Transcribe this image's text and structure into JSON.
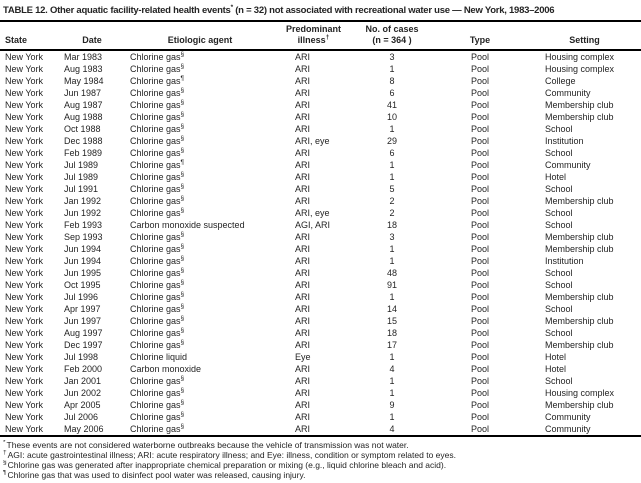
{
  "title": {
    "part1": "TABLE 12. Other aquatic facility-related health events",
    "sup": "*",
    "part2": " (n = 32) not associated with recreational water use — New York, 1983–2006"
  },
  "table": {
    "columns": [
      {
        "label": "State"
      },
      {
        "label": "Date"
      },
      {
        "label": "Etiologic agent"
      },
      {
        "line1": "Predominant",
        "line2": "illness",
        "sup": "†"
      },
      {
        "line1": "No. of cases",
        "line2": "(n = 364 )"
      },
      {
        "label": "Type"
      },
      {
        "label": "Setting"
      }
    ],
    "rows": [
      {
        "state": "New York",
        "date": "Mar 1983",
        "agent": "Chlorine gas",
        "agent_sup": "§",
        "illness": "ARI",
        "cases": "3",
        "type": "Pool",
        "setting": "Housing complex"
      },
      {
        "state": "New York",
        "date": "Aug 1983",
        "agent": "Chlorine gas",
        "agent_sup": "§",
        "illness": "ARI",
        "cases": "1",
        "type": "Pool",
        "setting": "Housing complex"
      },
      {
        "state": "New York",
        "date": "May 1984",
        "agent": "Chlorine gas",
        "agent_sup": "¶",
        "illness": "ARI",
        "cases": "8",
        "type": "Pool",
        "setting": "College"
      },
      {
        "state": "New York",
        "date": "Jun 1987",
        "agent": "Chlorine gas",
        "agent_sup": "§",
        "illness": "ARI",
        "cases": "6",
        "type": "Pool",
        "setting": "Community"
      },
      {
        "state": "New York",
        "date": "Aug 1987",
        "agent": "Chlorine gas",
        "agent_sup": "§",
        "illness": "ARI",
        "cases": "41",
        "type": "Pool",
        "setting": "Membership club"
      },
      {
        "state": "New York",
        "date": "Aug 1988",
        "agent": "Chlorine gas",
        "agent_sup": "§",
        "illness": "ARI",
        "cases": "10",
        "type": "Pool",
        "setting": "Membership club"
      },
      {
        "state": "New York",
        "date": "Oct 1988",
        "agent": "Chlorine gas",
        "agent_sup": "§",
        "illness": "ARI",
        "cases": "1",
        "type": "Pool",
        "setting": "School"
      },
      {
        "state": "New York",
        "date": "Dec 1988",
        "agent": "Chlorine gas",
        "agent_sup": "§",
        "illness": "ARI, eye",
        "cases": "29",
        "type": "Pool",
        "setting": "Institution"
      },
      {
        "state": "New York",
        "date": "Feb 1989",
        "agent": "Chlorine gas",
        "agent_sup": "§",
        "illness": "ARI",
        "cases": "6",
        "type": "Pool",
        "setting": "School"
      },
      {
        "state": "New York",
        "date": "Jul 1989",
        "agent": "Chlorine gas",
        "agent_sup": "¶",
        "illness": "ARI",
        "cases": "1",
        "type": "Pool",
        "setting": "Community"
      },
      {
        "state": "New York",
        "date": "Jul 1989",
        "agent": "Chlorine gas",
        "agent_sup": "§",
        "illness": "ARI",
        "cases": "1",
        "type": "Pool",
        "setting": "Hotel"
      },
      {
        "state": "New York",
        "date": "Jul 1991",
        "agent": "Chlorine gas",
        "agent_sup": "§",
        "illness": "ARI",
        "cases": "5",
        "type": "Pool",
        "setting": "School"
      },
      {
        "state": "New York",
        "date": "Jan 1992",
        "agent": "Chlorine gas",
        "agent_sup": "§",
        "illness": "ARI",
        "cases": "2",
        "type": "Pool",
        "setting": "Membership club"
      },
      {
        "state": "New York",
        "date": "Jun 1992",
        "agent": "Chlorine gas",
        "agent_sup": "§",
        "illness": "ARI, eye",
        "cases": "2",
        "type": "Pool",
        "setting": "School"
      },
      {
        "state": "New York",
        "date": "Feb 1993",
        "agent": "Carbon monoxide suspected",
        "agent_sup": "",
        "illness": "AGI, ARI",
        "cases": "18",
        "type": "Pool",
        "setting": "School"
      },
      {
        "state": "New York",
        "date": "Sep 1993",
        "agent": "Chlorine gas",
        "agent_sup": "§",
        "illness": "ARI",
        "cases": "3",
        "type": "Pool",
        "setting": "Membership club"
      },
      {
        "state": "New York",
        "date": "Jun 1994",
        "agent": "Chlorine gas",
        "agent_sup": "§",
        "illness": "ARI",
        "cases": "1",
        "type": "Pool",
        "setting": "Membership club"
      },
      {
        "state": "New York",
        "date": "Jun 1994",
        "agent": "Chlorine gas",
        "agent_sup": "§",
        "illness": "ARI",
        "cases": "1",
        "type": "Pool",
        "setting": "Institution"
      },
      {
        "state": "New York",
        "date": "Jun 1995",
        "agent": "Chlorine gas",
        "agent_sup": "§",
        "illness": "ARI",
        "cases": "48",
        "type": "Pool",
        "setting": "School"
      },
      {
        "state": "New York",
        "date": "Oct 1995",
        "agent": "Chlorine gas",
        "agent_sup": "§",
        "illness": "ARI",
        "cases": "91",
        "type": "Pool",
        "setting": "School"
      },
      {
        "state": "New York",
        "date": "Jul 1996",
        "agent": "Chlorine gas",
        "agent_sup": "§",
        "illness": "ARI",
        "cases": "1",
        "type": "Pool",
        "setting": "Membership club"
      },
      {
        "state": "New York",
        "date": "Apr 1997",
        "agent": "Chlorine gas",
        "agent_sup": "§",
        "illness": "ARI",
        "cases": "14",
        "type": "Pool",
        "setting": "School"
      },
      {
        "state": "New York",
        "date": "Jun 1997",
        "agent": "Chlorine gas",
        "agent_sup": "§",
        "illness": "ARI",
        "cases": "15",
        "type": "Pool",
        "setting": "Membership club"
      },
      {
        "state": "New York",
        "date": "Aug 1997",
        "agent": "Chlorine gas",
        "agent_sup": "§",
        "illness": "ARI",
        "cases": "18",
        "type": "Pool",
        "setting": "School"
      },
      {
        "state": "New York",
        "date": "Dec 1997",
        "agent": "Chlorine gas",
        "agent_sup": "§",
        "illness": "ARI",
        "cases": "17",
        "type": "Pool",
        "setting": "Membership club"
      },
      {
        "state": "New York",
        "date": "Jul 1998",
        "agent": "Chlorine liquid",
        "agent_sup": "",
        "illness": "Eye",
        "cases": "1",
        "type": "Pool",
        "setting": "Hotel"
      },
      {
        "state": "New York",
        "date": "Feb 2000",
        "agent": "Carbon monoxide",
        "agent_sup": "",
        "illness": "ARI",
        "cases": "4",
        "type": "Pool",
        "setting": "Hotel"
      },
      {
        "state": "New York",
        "date": "Jan 2001",
        "agent": "Chlorine gas",
        "agent_sup": "§",
        "illness": "ARI",
        "cases": "1",
        "type": "Pool",
        "setting": "School"
      },
      {
        "state": "New York",
        "date": "Jun 2002",
        "agent": "Chlorine gas",
        "agent_sup": "§",
        "illness": "ARI",
        "cases": "1",
        "type": "Pool",
        "setting": "Housing complex"
      },
      {
        "state": "New York",
        "date": "Apr 2005",
        "agent": "Chlorine gas",
        "agent_sup": "§",
        "illness": "ARI",
        "cases": "9",
        "type": "Pool",
        "setting": "Membership club"
      },
      {
        "state": "New York",
        "date": "Jul 2006",
        "agent": "Chlorine gas",
        "agent_sup": "§",
        "illness": "ARI",
        "cases": "1",
        "type": "Pool",
        "setting": "Community"
      },
      {
        "state": "New York",
        "date": "May 2006",
        "agent": "Chlorine gas",
        "agent_sup": "§",
        "illness": "ARI",
        "cases": "4",
        "type": "Pool",
        "setting": "Community"
      }
    ]
  },
  "footnotes": [
    {
      "marker": "*",
      "text": "These events are not considered waterborne outbreaks because the vehicle of transmission was not water."
    },
    {
      "marker": "†",
      "text": "AGI: acute gastrointestinal illness; ARI: acute respiratory illness; and Eye: illness, condition or symptom related to eyes."
    },
    {
      "marker": "§",
      "text": "Chlorine gas was generated after inappropriate chemical preparation or mixing (e.g., liquid chlorine bleach and acid)."
    },
    {
      "marker": "¶",
      "text": "Chlorine gas that was used to disinfect pool water was released, causing injury."
    }
  ],
  "colors": {
    "background": "#ffffff",
    "text": "#242424",
    "rule": "#000000"
  }
}
